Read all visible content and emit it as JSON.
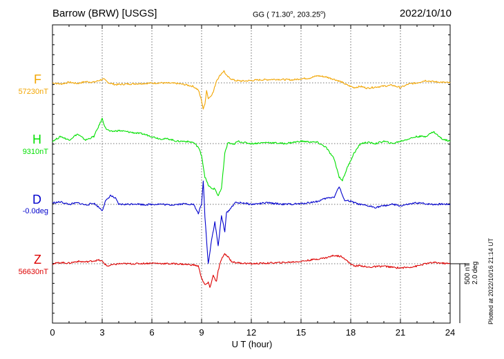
{
  "header": {
    "station": "Barrow (BRW)  [USGS]",
    "coords_prefix": "GG ( 71.30",
    "deg1": "o",
    "coords_mid": ", 203.25",
    "deg2": "o",
    "coords_suffix": ")",
    "date": "2022/10/10"
  },
  "footer": {
    "plotted_at": "Plotted at 2022/10/16 21:14 UT",
    "scale_line1": "500 nT",
    "scale_line2": "2.0 deg"
  },
  "colors": {
    "F": "#f2a500",
    "H": "#00e000",
    "D": "#0000cc",
    "Z": "#dd0000",
    "grid": "#444444"
  },
  "chart_data": {
    "type": "line",
    "title": "Barrow (BRW)  [USGS]",
    "xlabel": "U T (hour)",
    "ylabel": "",
    "xlim": [
      0,
      24
    ],
    "xticks": [
      "0",
      "3",
      "6",
      "9",
      "12",
      "15",
      "18",
      "21",
      "24"
    ],
    "grid": true,
    "scale": {
      "nT_per_bar": 500,
      "deg_per_bar": 2.0
    },
    "series": [
      {
        "name": "F",
        "baseline_label": "57230nT",
        "unit": "nT",
        "x": [
          0,
          0.5,
          1,
          1.5,
          2,
          2.5,
          2.9,
          3.1,
          3.4,
          3.8,
          4.5,
          5.5,
          6.5,
          7.5,
          8.0,
          8.5,
          8.8,
          9.0,
          9.1,
          9.2,
          9.3,
          9.4,
          9.5,
          9.7,
          9.9,
          10.1,
          10.2,
          10.35,
          10.5,
          10.7,
          11.0,
          11.5,
          12.5,
          13.5,
          14.5,
          15.0,
          15.5,
          16.0,
          16.5,
          17.0,
          17.4,
          17.8,
          18.2,
          18.6,
          19.0,
          19.5,
          20.5,
          21.0,
          21.5,
          22.0,
          22.5,
          23.0,
          23.5,
          24
        ],
        "y": [
          0,
          -10,
          5,
          -5,
          10,
          5,
          25,
          30,
          0,
          -15,
          -10,
          -5,
          0,
          -5,
          -15,
          -30,
          -60,
          -150,
          -220,
          -180,
          -60,
          -130,
          -120,
          -80,
          20,
          60,
          80,
          100,
          60,
          40,
          20,
          15,
          25,
          30,
          25,
          35,
          40,
          60,
          50,
          30,
          10,
          -20,
          -40,
          -30,
          -45,
          -35,
          -20,
          -40,
          -10,
          0,
          20,
          10,
          5,
          0
        ]
      },
      {
        "name": "H",
        "baseline_label": "9310nT",
        "unit": "nT",
        "x": [
          0,
          0.5,
          1,
          1.5,
          2,
          2.5,
          2.8,
          3.0,
          3.2,
          3.5,
          4.0,
          4.5,
          5,
          5.5,
          6,
          6.5,
          7,
          7.5,
          8,
          8.5,
          8.8,
          9.0,
          9.2,
          9.4,
          9.6,
          9.8,
          10.0,
          10.2,
          10.4,
          10.6,
          10.9,
          11.2,
          11.5,
          12,
          13,
          14,
          15,
          16,
          16.5,
          17.0,
          17.3,
          17.5,
          17.8,
          18.2,
          18.6,
          19,
          19.5,
          20,
          20.5,
          21,
          21.5,
          22,
          22.5,
          23,
          23.5,
          24
        ],
        "y": [
          20,
          60,
          30,
          80,
          30,
          60,
          150,
          210,
          130,
          100,
          110,
          100,
          90,
          80,
          60,
          40,
          40,
          20,
          20,
          10,
          -30,
          -100,
          -280,
          -350,
          -380,
          -380,
          -440,
          -380,
          -80,
          10,
          -10,
          20,
          10,
          0,
          10,
          0,
          20,
          10,
          -30,
          -130,
          -280,
          -310,
          -200,
          -80,
          0,
          10,
          0,
          20,
          0,
          20,
          40,
          60,
          60,
          100,
          40,
          20
        ]
      },
      {
        "name": "D",
        "baseline_label": "-0.0deg",
        "unit": "deg",
        "x": [
          0,
          0.5,
          1,
          1.5,
          2,
          2.5,
          2.8,
          3.0,
          3.2,
          3.5,
          3.8,
          4.0,
          4.5,
          5,
          5.5,
          6,
          6.5,
          7,
          7.5,
          8,
          8.5,
          8.8,
          9.0,
          9.1,
          9.2,
          9.4,
          9.6,
          9.8,
          10.0,
          10.2,
          10.4,
          10.5,
          10.8,
          11,
          11.5,
          12,
          13,
          14,
          15,
          15.5,
          16,
          16.5,
          17.0,
          17.3,
          17.6,
          18,
          18.5,
          19,
          19.5,
          20,
          20.5,
          21,
          21.5,
          22,
          22.5,
          23,
          23.5,
          24
        ],
        "y": [
          0.05,
          0.08,
          0.0,
          0.05,
          -0.02,
          0.04,
          -0.1,
          -0.2,
          0.1,
          0.3,
          0.2,
          0.0,
          0.0,
          0.02,
          -0.01,
          0.0,
          0.01,
          -0.02,
          0.0,
          0.02,
          0.0,
          -0.3,
          0.0,
          0.8,
          -0.4,
          -2.0,
          -1.2,
          -0.6,
          -1.4,
          -0.4,
          -0.9,
          -0.3,
          -0.1,
          0.05,
          0.05,
          0.0,
          0.05,
          0.0,
          0.02,
          0.06,
          0.1,
          0.2,
          0.25,
          0.6,
          0.15,
          0.1,
          0.0,
          -0.05,
          -0.1,
          -0.05,
          0.0,
          -0.05,
          0.0,
          0.05,
          0.02,
          0.0,
          0.01,
          0.0
        ]
      },
      {
        "name": "Z",
        "baseline_label": "56630nT",
        "unit": "nT",
        "x": [
          0,
          0.5,
          1,
          1.5,
          2,
          2.5,
          2.8,
          3.0,
          3.3,
          3.6,
          4,
          5,
          6,
          7,
          7.5,
          8,
          8.5,
          8.8,
          9.0,
          9.2,
          9.4,
          9.5,
          9.7,
          9.9,
          10.0,
          10.2,
          10.4,
          10.6,
          10.8,
          11,
          11.5,
          12,
          13,
          14,
          15,
          15.5,
          16,
          16.5,
          17.0,
          17.5,
          17.8,
          18.2,
          18.6,
          19,
          19.5,
          20,
          20.5,
          21,
          21.5,
          22,
          22.5,
          23,
          23.5,
          24
        ],
        "y": [
          0,
          10,
          5,
          20,
          15,
          25,
          30,
          20,
          -20,
          -10,
          0,
          0,
          5,
          0,
          0,
          -5,
          -10,
          -20,
          -120,
          -180,
          -160,
          -200,
          -100,
          -150,
          -60,
          40,
          80,
          60,
          20,
          10,
          5,
          0,
          5,
          10,
          20,
          30,
          40,
          50,
          70,
          60,
          20,
          -20,
          -15,
          -30,
          -25,
          -20,
          -30,
          -35,
          -30,
          -20,
          0,
          10,
          5,
          0
        ]
      }
    ]
  }
}
